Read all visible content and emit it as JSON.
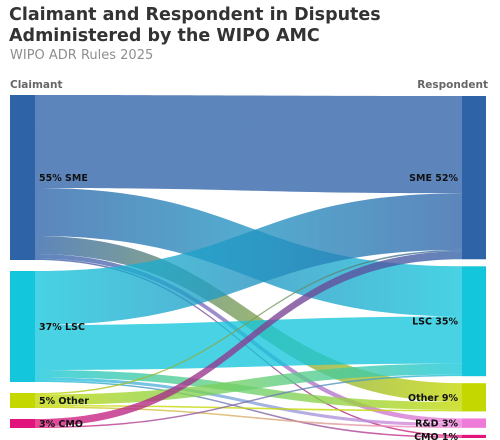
{
  "header": {
    "title": "Claimant and Respondent in Disputes Administered by the WIPO AMC",
    "subtitle": "WIPO ADR Rules 2025"
  },
  "chart_data": {
    "type": "sankey",
    "title": "Claimant and Respondent in Disputes Administered by the WIPO AMC",
    "subtitle": "WIPO ADR Rules 2025",
    "left_column_label": "Claimant",
    "right_column_label": "Respondent",
    "left_nodes": [
      {
        "id": "c_sme",
        "label": "55% SME",
        "value": 55,
        "color": "#2f63a8"
      },
      {
        "id": "c_lsc",
        "label": "37% LSC",
        "value": 37,
        "color": "#14c6dc"
      },
      {
        "id": "c_other",
        "label": "5% Other",
        "value": 5,
        "color": "#c4d800"
      },
      {
        "id": "c_cmo",
        "label": "3% CMO",
        "value": 3,
        "color": "#e0147a"
      }
    ],
    "right_nodes": [
      {
        "id": "r_sme",
        "label": "SME 52%",
        "value": 52,
        "color": "#2f63a8"
      },
      {
        "id": "r_lsc",
        "label": "LSC 35%",
        "value": 35,
        "color": "#14c6dc"
      },
      {
        "id": "r_other",
        "label": "Other 9%",
        "value": 9,
        "color": "#c4d800"
      },
      {
        "id": "r_rd",
        "label": "R&D 3%",
        "value": 3,
        "color": "#ef7bd8"
      },
      {
        "id": "r_cmo",
        "label": "CMO 1%",
        "value": 1,
        "color": "#e0147a"
      }
    ],
    "links": [
      {
        "source": "c_sme",
        "target": "r_sme",
        "value": 31
      },
      {
        "source": "c_sme",
        "target": "r_lsc",
        "value": 16
      },
      {
        "source": "c_sme",
        "target": "r_other",
        "value": 6
      },
      {
        "source": "c_sme",
        "target": "r_rd",
        "value": 1.5
      },
      {
        "source": "c_sme",
        "target": "r_cmo",
        "value": 0.5
      },
      {
        "source": "c_lsc",
        "target": "r_sme",
        "value": 18
      },
      {
        "source": "c_lsc",
        "target": "r_lsc",
        "value": 15
      },
      {
        "source": "c_lsc",
        "target": "r_other",
        "value": 2.5
      },
      {
        "source": "c_lsc",
        "target": "r_rd",
        "value": 1
      },
      {
        "source": "c_lsc",
        "target": "r_cmo",
        "value": 0.5
      },
      {
        "source": "c_other",
        "target": "r_sme",
        "value": 0.5
      },
      {
        "source": "c_other",
        "target": "r_lsc",
        "value": 3.5
      },
      {
        "source": "c_other",
        "target": "r_other",
        "value": 0.5
      },
      {
        "source": "c_other",
        "target": "r_rd",
        "value": 0.5
      },
      {
        "source": "c_cmo",
        "target": "r_sme",
        "value": 2.5
      },
      {
        "source": "c_cmo",
        "target": "r_lsc",
        "value": 0.5
      }
    ]
  }
}
